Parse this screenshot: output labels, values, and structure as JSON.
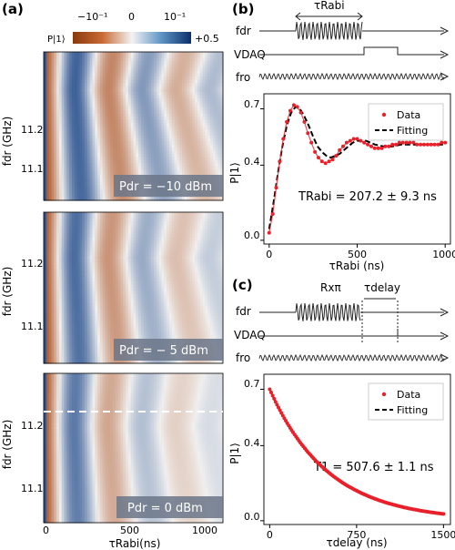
{
  "panel_labels": {
    "a": "(a)",
    "b": "(b)",
    "c": "(c)"
  },
  "colorbar": {
    "label": "P|1⟩",
    "ticks": [
      "−10⁻¹",
      "0",
      "10⁻¹",
      "+0.5"
    ],
    "colors": {
      "low": "#b04a10",
      "mid": "#f2f2f2",
      "high": "#123f82"
    }
  },
  "chart_data": [
    {
      "type": "heatmap",
      "panel": "a",
      "annotation": "Pdr = −10 dBm",
      "ylabel": "fdr (GHz)",
      "yticks": [
        "11.2",
        "11.1"
      ],
      "xlim": [
        0,
        1050
      ],
      "description_values": {
        "drive_power_dBm": -10
      }
    },
    {
      "type": "heatmap",
      "panel": "a",
      "annotation": "Pdr = − 5 dBm",
      "ylabel": "fdr (GHz)",
      "yticks": [
        "11.2",
        "11.1"
      ],
      "xlim": [
        0,
        1050
      ],
      "description_values": {
        "drive_power_dBm": -5
      }
    },
    {
      "type": "heatmap",
      "panel": "a",
      "annotation": "Pdr = 0 dBm",
      "ylabel": "fdr (GHz)",
      "yticks": [
        "11.2",
        "11.1"
      ],
      "xlabel": "τRabi(ns)",
      "xticks": [
        "0",
        "500",
        "1000"
      ],
      "xlim": [
        0,
        1050
      ],
      "description_values": {
        "drive_power_dBm": 0
      }
    },
    {
      "type": "scatter",
      "panel": "b",
      "xlabel": "τRabi (ns)",
      "ylabel": "P|1⟩",
      "xlim": [
        -30,
        1030
      ],
      "ylim": [
        -0.02,
        0.78
      ],
      "xticks": [
        0,
        500,
        1000
      ],
      "yticks": [
        "0.0",
        "0.4",
        "0.7"
      ],
      "annotation": "TRabi = 207.2 ± 9.3 ns",
      "legend": [
        "Data",
        "Fitting"
      ],
      "legend_position": "top-right",
      "series": [
        {
          "name": "Data",
          "color": "#e8202a",
          "x": [
            0,
            20,
            40,
            60,
            80,
            100,
            120,
            140,
            160,
            180,
            200,
            220,
            240,
            260,
            280,
            300,
            320,
            340,
            360,
            380,
            400,
            420,
            440,
            460,
            480,
            500,
            520,
            540,
            560,
            580,
            600,
            620,
            640,
            660,
            680,
            700,
            720,
            740,
            760,
            780,
            800,
            820,
            840,
            860,
            880,
            900,
            920,
            940,
            960,
            980,
            1000
          ],
          "y": [
            0.04,
            0.14,
            0.28,
            0.42,
            0.54,
            0.63,
            0.69,
            0.72,
            0.71,
            0.68,
            0.63,
            0.57,
            0.52,
            0.47,
            0.44,
            0.42,
            0.41,
            0.42,
            0.43,
            0.45,
            0.48,
            0.5,
            0.52,
            0.53,
            0.54,
            0.54,
            0.53,
            0.52,
            0.51,
            0.5,
            0.49,
            0.49,
            0.49,
            0.5,
            0.5,
            0.51,
            0.51,
            0.52,
            0.52,
            0.52,
            0.52,
            0.52,
            0.51,
            0.51,
            0.51,
            0.51,
            0.51,
            0.51,
            0.51,
            0.52,
            0.52
          ]
        },
        {
          "name": "Fitting",
          "color": "#000000",
          "style": "dashed",
          "x": [
            0,
            25,
            50,
            75,
            100,
            125,
            150,
            175,
            200,
            225,
            250,
            275,
            300,
            325,
            350,
            375,
            400,
            425,
            450,
            475,
            500,
            550,
            600,
            650,
            700,
            750,
            800,
            850,
            900,
            950,
            1000
          ],
          "y": [
            0.06,
            0.2,
            0.36,
            0.5,
            0.61,
            0.68,
            0.71,
            0.7,
            0.66,
            0.61,
            0.55,
            0.5,
            0.47,
            0.45,
            0.44,
            0.45,
            0.46,
            0.48,
            0.5,
            0.52,
            0.53,
            0.53,
            0.51,
            0.5,
            0.5,
            0.51,
            0.51,
            0.51,
            0.51,
            0.51,
            0.51
          ]
        }
      ]
    },
    {
      "type": "scatter",
      "panel": "c",
      "xlabel": "τdelay (ns)",
      "ylabel": "P|1⟩",
      "xlim": [
        -50,
        1560
      ],
      "ylim": [
        -0.02,
        0.78
      ],
      "xticks": [
        0,
        750,
        1500
      ],
      "yticks": [
        "0.0",
        "0.4",
        "0.7"
      ],
      "annotation": "T1 = 507.6 ± 1.1 ns",
      "legend": [
        "Data",
        "Fitting"
      ],
      "legend_position": "top-right",
      "series": [
        {
          "name": "Data",
          "color": "#e8202a",
          "model": "exponential",
          "amplitude": 0.7,
          "offset": 0.0,
          "tau": 507.6,
          "x_start": 0,
          "x_end": 1500,
          "n_points": 120
        },
        {
          "name": "Fitting",
          "color": "#000000",
          "style": "dashed",
          "model": "exponential",
          "amplitude": 0.7,
          "offset": 0.0,
          "tau": 507.6,
          "x_start": 0,
          "x_end": 1500
        }
      ]
    }
  ],
  "pulse_b": {
    "row_labels": [
      "fdr",
      "VDAQ",
      "fro"
    ],
    "pulse_label": "τRabi"
  },
  "pulse_c": {
    "row_labels": [
      "fdr",
      "VDAQ",
      "fro"
    ],
    "gate_label": "Rxπ",
    "delay_label": "τdelay"
  }
}
